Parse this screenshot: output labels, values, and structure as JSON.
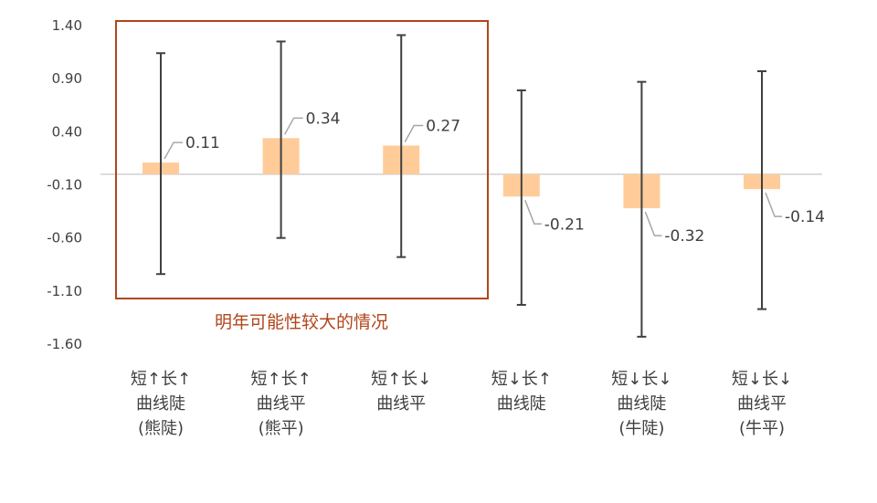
{
  "chart_data": {
    "type": "bar",
    "categories": [
      {
        "lines": [
          "短↑长↑",
          "曲线陡",
          "(熊陡)"
        ]
      },
      {
        "lines": [
          "短↑长↑",
          "曲线平",
          "(熊平)"
        ]
      },
      {
        "lines": [
          "短↑长↓",
          "曲线平"
        ]
      },
      {
        "lines": [
          "短↓长↑",
          "曲线陡"
        ]
      },
      {
        "lines": [
          "短↓长↓",
          "曲线陡",
          "(牛陡)"
        ]
      },
      {
        "lines": [
          "短↓长↓",
          "曲线平",
          "(牛平)"
        ]
      }
    ],
    "values": [
      0.11,
      0.34,
      0.27,
      -0.21,
      -0.32,
      -0.14
    ],
    "data_labels": [
      "0.11",
      "0.34",
      "0.27",
      "-0.21",
      "-0.32",
      "-0.14"
    ],
    "error_high": [
      1.14,
      1.25,
      1.31,
      0.79,
      0.87,
      0.97
    ],
    "error_low": [
      -0.94,
      -0.6,
      -0.78,
      -1.23,
      -1.53,
      -1.27
    ],
    "y_ticks": [
      "1.40",
      "0.90",
      "0.40",
      "-0.10",
      "-0.60",
      "-1.10",
      "-1.60"
    ],
    "y_tick_values": [
      1.4,
      0.9,
      0.4,
      -0.1,
      -0.6,
      -1.1,
      -1.6
    ],
    "ylim": [
      -1.6,
      1.4
    ],
    "highlight_box": {
      "categories": [
        0,
        1,
        2
      ],
      "label": "明年可能性较大的情况"
    },
    "colors": {
      "bar": "#ffcc99",
      "error_bar": "#404040",
      "box": "#b0461a",
      "zero_line": "#d0d0d0"
    }
  }
}
